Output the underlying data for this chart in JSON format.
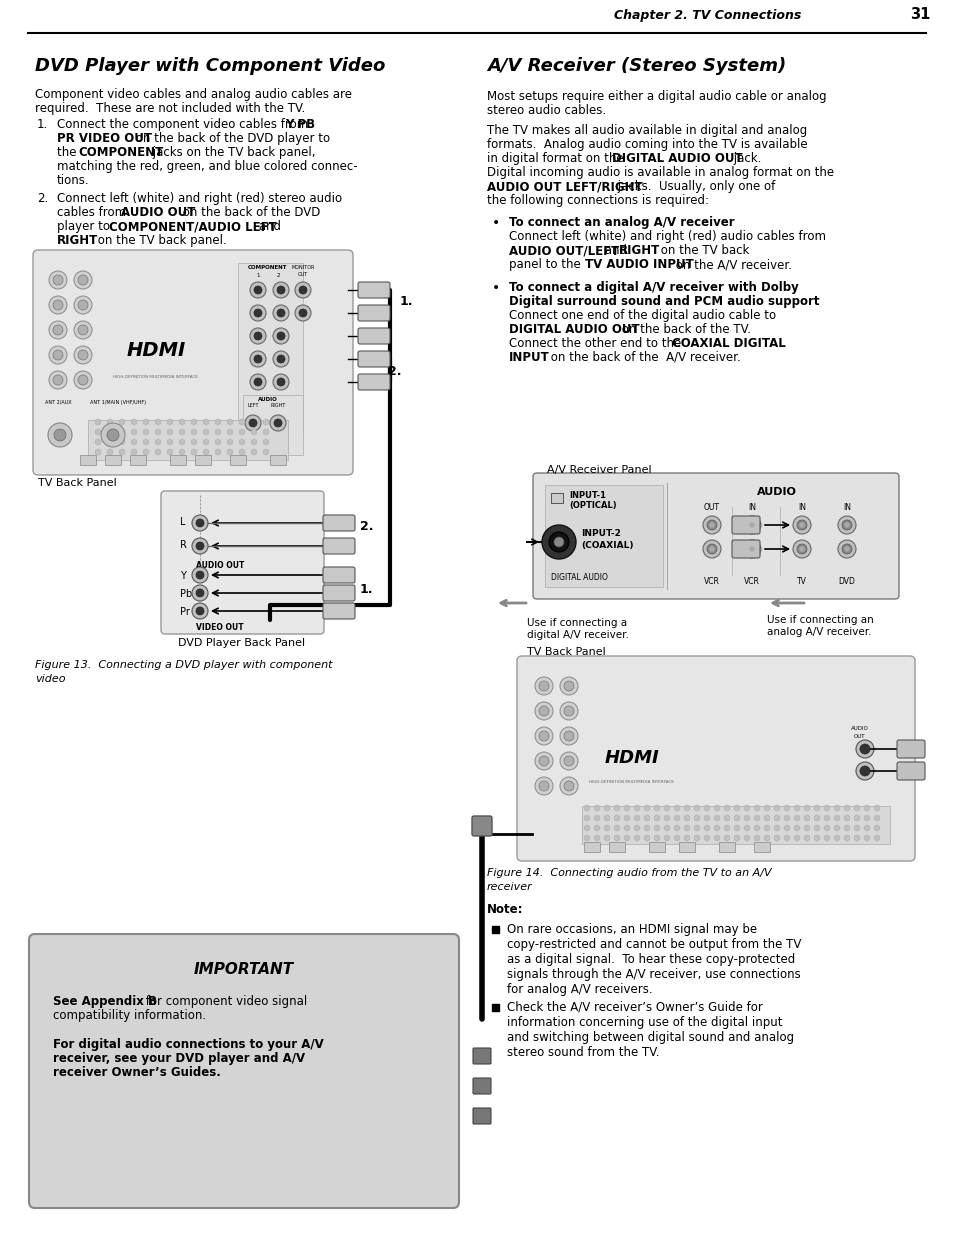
{
  "bg": "#ffffff",
  "page_title": "Chapter 2. TV Connections",
  "page_number": "31",
  "left_title": "DVD Player with Component Video",
  "left_intro1": "Component video cables and analog audio cables are",
  "left_intro2": "required.  These are not included with the TV.",
  "item1_num": "1.",
  "item1_l1": "Connect the component video cables from ",
  "item1_l1b": "Y PB",
  "item1_l2b": "PR VIDEO OUT",
  "item1_l2s": " on the back of the DVD player to",
  "item1_l3s": "the ",
  "item1_l3b": "COMPONENT",
  "item1_l3e": " jacks on the TV back panel,",
  "item1_l4": "matching the red, green, and blue colored connec-",
  "item1_l5": "tions.",
  "item2_num": "2.",
  "item2_l1": "Connect left (white) and right (red) stereo audio",
  "item2_l2s": "cables from ",
  "item2_l2b": "AUDIO OUT",
  "item2_l2e": " on the back of the DVD",
  "item2_l3s": "player to ",
  "item2_l3b": "COMPONENT/AUDIO LEFT",
  "item2_l3e": " and",
  "item2_l4b": "RIGHT",
  "item2_l4e": " on the TV back panel.",
  "tv_back_panel": "TV Back Panel",
  "dvd_back_panel": "DVD Player Back Panel",
  "fig13": "Figure 13.  Connecting a DVD player with component",
  "fig13b": "video",
  "right_title": "A/V Receiver (Stereo System)",
  "right_p1_l1": "Most setups require either a digital audio cable or analog",
  "right_p1_l2": "stereo audio cables.",
  "right_p2_l1": "The TV makes all audio available in digital and analog",
  "right_p2_l2": "formats.  Analog audio coming into the TV is available",
  "right_p2_l3s": "in digital format on the ",
  "right_p2_l3b": "DIGITAL AUDIO OUT",
  "right_p2_l3e": " jack.",
  "right_p2_l4": "Digital incoming audio is available in analog format on the",
  "right_p2_l5b": "AUDIO OUT LEFT/RIGHT",
  "right_p2_l5e": " jacks.  Usually, only one of",
  "right_p2_l6": "the following connections is required:",
  "b1_bold": "To connect an analog A/V receiver",
  "b1_l1": "Connect left (white) and right (red) audio cables from",
  "b1_l2s": "AUDIO OUT/LEFT",
  "b1_l2m": " and ",
  "b1_l2b": "RIGHT",
  "b1_l2e": " on the TV back",
  "b1_l3s": "panel to the ",
  "b1_l3b": "TV AUDIO INPUT",
  "b1_l3e": " on the A/V receiver.",
  "b2_bold1": "To connect a digital A/V receiver with Dolby",
  "b2_bold2": "Digital surround sound and PCM audio support",
  "b2_l1": "Connect one end of the digital audio cable to",
  "b2_l2b": "DIGITAL AUDIO OUT",
  "b2_l2e": " on the back of the TV.",
  "b2_l3s": "Connect the other end to the ",
  "b2_l3b": "COAXIAL DIGITAL",
  "b2_l4b": "INPUT",
  "b2_l4e": " on the back of the  A/V receiver.",
  "av_panel_label": "A/V Receiver Panel",
  "av_input1": "INPUT-1",
  "av_input1b": "(OPTICAL)",
  "av_input2": "INPUT-2",
  "av_input2b": "(COAXIAL)",
  "av_dig_audio": "DIGITAL AUDIO",
  "av_audio": "AUDIO",
  "av_out": "OUT",
  "av_in1": "IN",
  "av_in2": "IN",
  "av_in3": "IN",
  "av_vcr": "VCR",
  "av_tv": "TV",
  "av_dvd": "DVD",
  "use_digital": "Use if connecting a\ndigital A/V receiver.",
  "use_analog": "Use if connecting an\nanalog A/V receiver.",
  "tv_back_panel2": "TV Back Panel",
  "fig14": "Figure 14.  Connecting audio from the TV to an A/V",
  "fig14b": "receiver",
  "note_head": "Note:",
  "note1": "On rare occasions, an HDMI signal may be\ncopy-restricted and cannot be output from the TV\nas a digital signal.  To hear these copy-protected\nsignals through the A/V receiver, use connections\nfor analog A/V receivers.",
  "note2": "Check the A/V receiver’s Owner’s Guide for\ninformation concerning use of the digital input\nand switching between digital sound and analog\nstereo sound from the TV.",
  "imp_title": "IMPORTANT",
  "imp_l1a": "See Appendix B",
  "imp_l1b": " for component video signal",
  "imp_l2": "compatibility information.",
  "imp_l3": "For digital audio connections to your A/V",
  "imp_l4": "receiver, see your DVD player and A/V",
  "imp_l5": "receiver Owner’s Guides.",
  "imp_box_fc": "#d4d4d4",
  "imp_box_ec": "#888888"
}
